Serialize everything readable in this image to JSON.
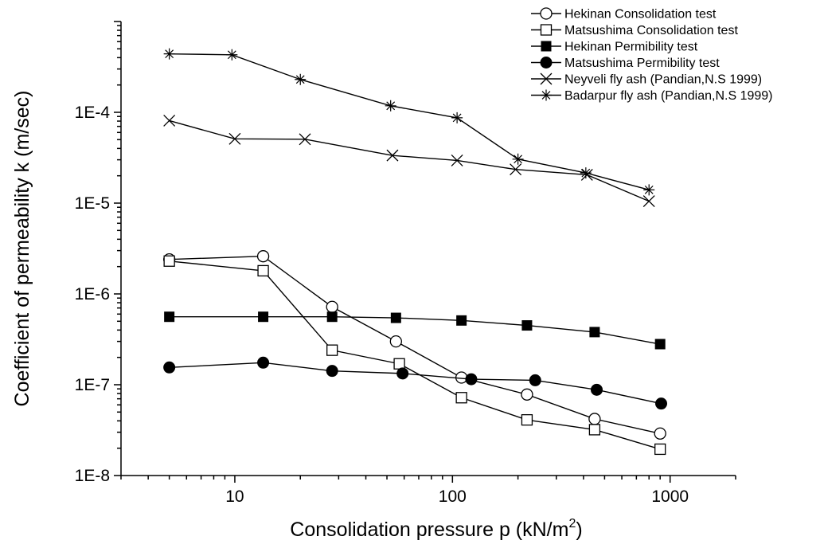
{
  "chart_data": {
    "type": "line",
    "xlabel": "Consolidation pressure p (kN/m",
    "xlabel_superscript": "2",
    "xlabel_suffix": ")",
    "ylabel": "Coefficient of permeability k (m/sec)",
    "x_scale": "log",
    "y_scale": "log",
    "xlim": [
      3,
      2000
    ],
    "ylim": [
      1e-08,
      0.001
    ],
    "x_ticks": [
      10,
      100,
      1000
    ],
    "x_tick_labels": [
      "10",
      "100",
      "1000"
    ],
    "y_ticks": [
      1e-08,
      1e-07,
      1e-06,
      1e-05,
      0.0001
    ],
    "y_tick_labels": [
      "1E-8",
      "1E-7",
      "1E-6",
      "1E-5",
      "1E-4"
    ],
    "grid": false,
    "legend_position": "top-right",
    "series": [
      {
        "name": "Hekinan Consolidation test",
        "marker": "open-circle",
        "x": [
          5,
          13.5,
          28,
          55,
          110,
          220,
          450,
          900
        ],
        "y": [
          2.4e-06,
          2.6e-06,
          7.2e-07,
          3e-07,
          1.2e-07,
          7.8e-08,
          4.2e-08,
          2.9e-08
        ]
      },
      {
        "name": "Matsushima Consolidation test",
        "marker": "open-square",
        "x": [
          5,
          13.5,
          28,
          57,
          110,
          220,
          450,
          900
        ],
        "y": [
          2.3e-06,
          1.8e-06,
          2.4e-07,
          1.7e-07,
          7.2e-08,
          4.1e-08,
          3.2e-08,
          1.95e-08
        ]
      },
      {
        "name": "Hekinan Permibility test",
        "marker": "filled-square",
        "x": [
          5,
          13.5,
          28,
          55,
          110,
          220,
          450,
          900
        ],
        "y": [
          5.6e-07,
          5.6e-07,
          5.6e-07,
          5.45e-07,
          5.1e-07,
          4.5e-07,
          3.8e-07,
          2.8e-07
        ]
      },
      {
        "name": "Matsushima Permibility test",
        "marker": "filled-circle",
        "x": [
          5,
          13.5,
          28,
          59,
          122,
          240,
          460,
          910
        ],
        "y": [
          1.55e-07,
          1.75e-07,
          1.42e-07,
          1.33e-07,
          1.15e-07,
          1.12e-07,
          8.8e-08,
          6.2e-08
        ]
      },
      {
        "name": "Neyveli fly ash (Pandian,N.S 1999)",
        "marker": "x",
        "x": [
          5,
          10,
          21,
          53,
          105,
          195,
          415,
          800
        ],
        "y": [
          8.1e-05,
          5.1e-05,
          5.05e-05,
          3.35e-05,
          2.95e-05,
          2.35e-05,
          2.05e-05,
          1.05e-05
        ]
      },
      {
        "name": "Badarpur fly ash (Pandian,N.S 1999)",
        "marker": "asterisk",
        "x": [
          5,
          9.7,
          20,
          52,
          105,
          200,
          410,
          800
        ],
        "y": [
          0.00044,
          0.00043,
          0.00023,
          0.000118,
          8.7e-05,
          3.05e-05,
          2.15e-05,
          1.4e-05
        ]
      }
    ]
  }
}
